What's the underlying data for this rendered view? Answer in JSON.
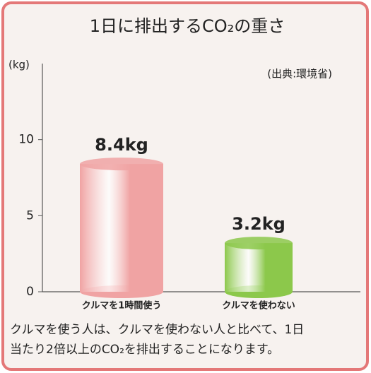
{
  "chart_data": {
    "type": "bar",
    "title": "1日に排出するCO₂の重さ",
    "y_axis_label": "(kg)",
    "source": "(出典:環境省)",
    "categories": [
      "クルマを1時間使う",
      "クルマを使わない"
    ],
    "values": [
      8.4,
      3.2
    ],
    "value_labels": [
      "8.4kg",
      "3.2kg"
    ],
    "colors": [
      "#f0a3a3",
      "#8cc84b"
    ],
    "ylim": [
      0,
      15
    ],
    "yticks": [
      0,
      5,
      10
    ],
    "grid": false,
    "note": [
      "クルマを使う人は、クルマを使わない人と比べて、1日",
      "当たり2倍以上のCO₂を排出することになります。"
    ]
  }
}
